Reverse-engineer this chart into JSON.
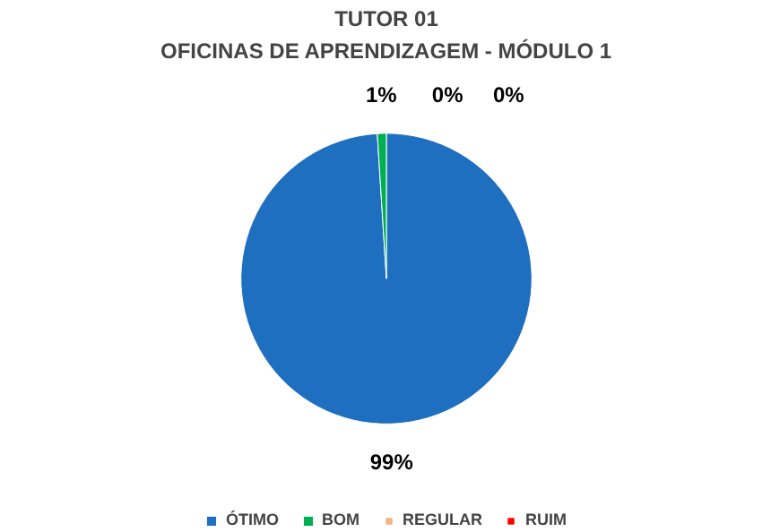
{
  "chart_data": {
    "type": "pie",
    "title": "TUTOR 01",
    "subtitle": "OFICINAS DE APRENDIZAGEM - MÓDULO 1",
    "categories": [
      "ÓTIMO",
      "BOM",
      "REGULAR",
      "RUIM"
    ],
    "values": [
      99,
      1,
      0,
      0
    ],
    "colors": [
      "#1f6fc0",
      "#00b050",
      "#f4b183",
      "#ff0000"
    ],
    "value_labels": [
      "99%",
      "1%",
      "0%",
      "0%"
    ],
    "legend": "bottom"
  }
}
